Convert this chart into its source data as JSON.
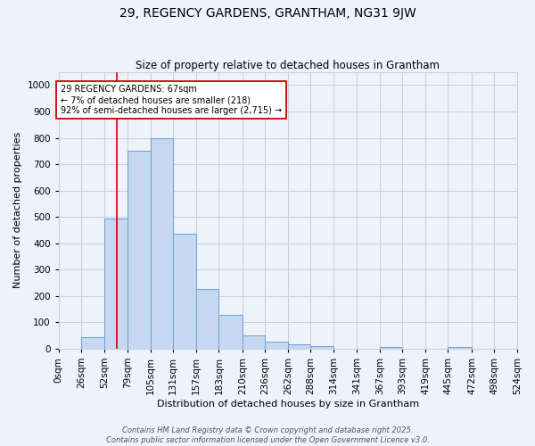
{
  "title": "29, REGENCY GARDENS, GRANTHAM, NG31 9JW",
  "subtitle": "Size of property relative to detached houses in Grantham",
  "xlabel": "Distribution of detached houses by size in Grantham",
  "ylabel": "Number of detached properties",
  "bin_labels": [
    "0sqm",
    "26sqm",
    "52sqm",
    "79sqm",
    "105sqm",
    "131sqm",
    "157sqm",
    "183sqm",
    "210sqm",
    "236sqm",
    "262sqm",
    "288sqm",
    "314sqm",
    "341sqm",
    "367sqm",
    "393sqm",
    "419sqm",
    "445sqm",
    "472sqm",
    "498sqm",
    "524sqm"
  ],
  "bin_edges": [
    0,
    26,
    52,
    79,
    105,
    131,
    157,
    183,
    210,
    236,
    262,
    288,
    314,
    341,
    367,
    393,
    419,
    445,
    472,
    498,
    524
  ],
  "bar_heights": [
    0,
    42,
    494,
    750,
    800,
    435,
    225,
    128,
    50,
    28,
    15,
    10,
    0,
    0,
    6,
    0,
    0,
    6,
    0,
    0,
    0
  ],
  "bar_color": "#c5d8f0",
  "bar_edge_color": "#6b9fd4",
  "property_line_x": 67,
  "property_line_color": "#cc0000",
  "annotation_text": "29 REGENCY GARDENS: 67sqm\n← 7% of detached houses are smaller (218)\n92% of semi-detached houses are larger (2,715) →",
  "annotation_box_color": "#ffffff",
  "annotation_box_edge": "#cc0000",
  "ylim": [
    0,
    1050
  ],
  "yticks": [
    0,
    100,
    200,
    300,
    400,
    500,
    600,
    700,
    800,
    900,
    1000
  ],
  "footer_line1": "Contains HM Land Registry data © Crown copyright and database right 2025.",
  "footer_line2": "Contains public sector information licensed under the Open Government Licence v3.0.",
  "bg_color": "#eef2fb",
  "grid_color": "#c8d0e0"
}
